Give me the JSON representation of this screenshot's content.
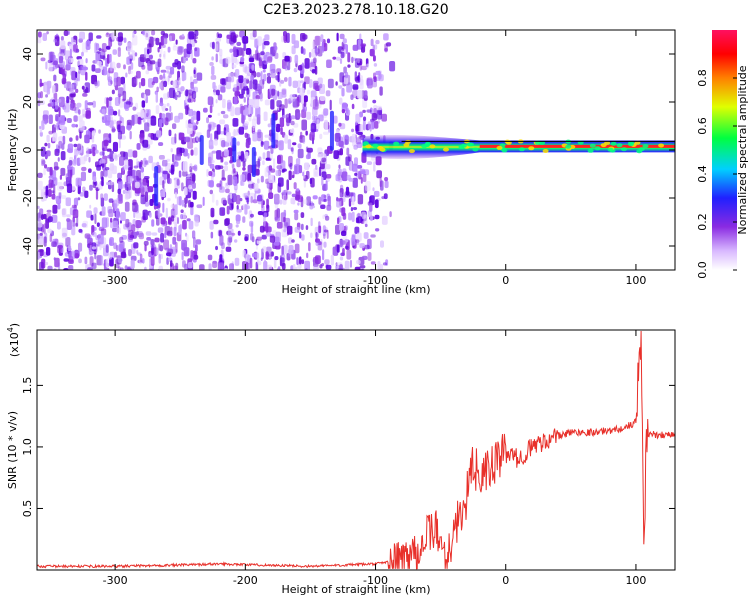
{
  "title": "C2E3.2023.278.10.18.G20",
  "colors": {
    "snr_line": "#e8302a",
    "colorbar_top": "#ff1060",
    "spectrogram_dominant": "#8a2be2"
  },
  "chart_data": [
    {
      "type": "heatmap",
      "xlabel": "Height of straight line (km)",
      "ylabel": "Frequency (Hz)",
      "xlim": [
        -360,
        130
      ],
      "ylim": [
        -50,
        50
      ],
      "xticks": [
        -300,
        -200,
        -100,
        0,
        100
      ],
      "yticks": [
        -40,
        -20,
        0,
        20,
        40
      ],
      "colorbar": {
        "label": "Normalized spectral amplitude",
        "range": [
          0,
          1
        ],
        "ticks": [
          "0.0",
          "0.2",
          "0.4",
          "0.6",
          "0.8"
        ],
        "colormap": "white-violet-blue-cyan-green-yellow-red-pink"
      },
      "features": {
        "noise_region_x": [
          -360,
          -85
        ],
        "signal_line_frequency_hz": 1.5,
        "signal_onset_x": -110,
        "strong_signal_x": [
          -20,
          130
        ]
      }
    },
    {
      "type": "line",
      "xlabel": "Height of straight line (km)",
      "ylabel": "SNR (10 * v/v)",
      "y_multiplier": "(x10",
      "y_multiplier_exp": "4",
      "y_multiplier_close": ")",
      "xlim": [
        -360,
        130
      ],
      "ylim": [
        0,
        1.95
      ],
      "xticks": [
        -300,
        -200,
        -100,
        0,
        100
      ],
      "yticks": [
        "0.5",
        "1.0",
        "1.5"
      ],
      "series": [
        {
          "x": [
            -360,
            -300,
            -250,
            -220,
            -150,
            -100,
            -80,
            -65,
            -55,
            -45,
            -40,
            -30,
            -25,
            -18,
            -10,
            0,
            10,
            20,
            30,
            50,
            70,
            90,
            100,
            104,
            106,
            108,
            115,
            130
          ],
          "y": [
            0.03,
            0.03,
            0.04,
            0.05,
            0.03,
            0.05,
            0.08,
            0.2,
            0.35,
            0.1,
            0.3,
            0.6,
            0.85,
            0.75,
            0.85,
            0.95,
            0.9,
            1.0,
            1.05,
            1.12,
            1.12,
            1.15,
            1.2,
            1.9,
            0.2,
            1.1,
            1.1,
            1.1
          ]
        }
      ]
    }
  ]
}
